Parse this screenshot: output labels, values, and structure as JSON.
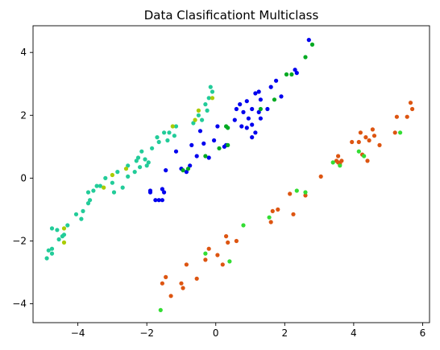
{
  "chart_data": {
    "type": "scatter",
    "title": "Data Clasificationt Multiclass",
    "xlabel": "",
    "ylabel": "",
    "xlim": [
      -5.3,
      6.2
    ],
    "ylim": [
      -4.6,
      4.85
    ],
    "x_ticks": [
      -4,
      -2,
      0,
      2,
      4,
      6
    ],
    "y_ticks": [
      -4,
      -2,
      0,
      2,
      4
    ],
    "grid": false,
    "legend": "none",
    "series": [
      {
        "color": "#0000ee",
        "points": [
          [
            2.7,
            4.4
          ],
          [
            2.3,
            3.45
          ],
          [
            2.35,
            3.35
          ],
          [
            1.75,
            3.1
          ],
          [
            1.6,
            2.9
          ],
          [
            1.9,
            2.6
          ],
          [
            1.25,
            2.75
          ],
          [
            1.15,
            2.7
          ],
          [
            1.3,
            2.5
          ],
          [
            1.5,
            2.2
          ],
          [
            0.6,
            2.2
          ],
          [
            0.7,
            2.35
          ],
          [
            0.9,
            2.45
          ],
          [
            1.05,
            2.2
          ],
          [
            1.25,
            2.1
          ],
          [
            0.8,
            2.1
          ],
          [
            0.55,
            1.85
          ],
          [
            0.75,
            1.65
          ],
          [
            0.95,
            1.9
          ],
          [
            0.9,
            1.6
          ],
          [
            1.05,
            1.7
          ],
          [
            1.15,
            1.45
          ],
          [
            1.3,
            1.9
          ],
          [
            1.05,
            1.3
          ],
          [
            0.05,
            1.65
          ],
          [
            -0.45,
            1.5
          ],
          [
            -0.05,
            1.2
          ],
          [
            -0.35,
            1.1
          ],
          [
            0.25,
            1.0
          ],
          [
            0.3,
            1.05
          ],
          [
            -0.7,
            1.05
          ],
          [
            -1.15,
            0.85
          ],
          [
            -0.55,
            0.7
          ],
          [
            -0.2,
            0.65
          ],
          [
            -0.75,
            0.4
          ],
          [
            -1.0,
            0.3
          ],
          [
            -1.45,
            0.25
          ],
          [
            -0.85,
            0.2
          ],
          [
            -1.9,
            -0.4
          ],
          [
            -1.9,
            -0.45
          ],
          [
            -1.55,
            -0.35
          ],
          [
            -1.5,
            -0.45
          ],
          [
            -1.75,
            -0.7
          ],
          [
            -1.55,
            -0.7
          ],
          [
            -1.65,
            -0.7
          ]
        ]
      },
      {
        "color": "#00aa22",
        "points": [
          [
            2.8,
            4.25
          ],
          [
            2.6,
            3.85
          ],
          [
            2.05,
            3.3
          ],
          [
            2.2,
            3.3
          ],
          [
            1.7,
            2.5
          ],
          [
            0.35,
            1.6
          ],
          [
            0.3,
            1.65
          ],
          [
            0.35,
            1.05
          ],
          [
            -0.95,
            0.25
          ],
          [
            -0.8,
            0.3
          ],
          [
            1.3,
            2.2
          ],
          [
            0.1,
            0.95
          ],
          [
            -0.3,
            0.7
          ]
        ]
      },
      {
        "color": "#22cc99",
        "points": [
          [
            -0.15,
            2.9
          ],
          [
            -0.1,
            2.75
          ],
          [
            -0.2,
            2.55
          ],
          [
            -0.3,
            2.35
          ],
          [
            -0.25,
            2.15
          ],
          [
            -0.5,
            2.0
          ],
          [
            -0.4,
            1.85
          ],
          [
            -0.65,
            1.75
          ],
          [
            -1.15,
            1.65
          ],
          [
            -1.5,
            1.45
          ],
          [
            -1.7,
            1.3
          ],
          [
            -1.65,
            1.15
          ],
          [
            -1.85,
            0.95
          ],
          [
            -2.15,
            0.85
          ],
          [
            -2.25,
            0.65
          ],
          [
            -2.05,
            0.6
          ],
          [
            -2.3,
            0.55
          ],
          [
            -1.95,
            0.5
          ],
          [
            -2.0,
            0.4
          ],
          [
            -2.2,
            0.35
          ],
          [
            -2.55,
            0.4
          ],
          [
            -2.35,
            0.2
          ],
          [
            -2.85,
            0.2
          ],
          [
            -2.55,
            0.05
          ],
          [
            -3.2,
            0.0
          ],
          [
            -3.0,
            -0.15
          ],
          [
            -2.7,
            -0.3
          ],
          [
            -2.95,
            -0.45
          ],
          [
            -3.35,
            -0.25
          ],
          [
            -3.45,
            -0.25
          ],
          [
            -3.55,
            -0.4
          ],
          [
            -3.7,
            -0.45
          ],
          [
            -3.65,
            -0.7
          ],
          [
            -3.7,
            -0.8
          ],
          [
            -3.85,
            -1.05
          ],
          [
            -4.05,
            -1.15
          ],
          [
            -3.9,
            -1.3
          ],
          [
            -4.3,
            -1.5
          ],
          [
            -4.4,
            -1.8
          ],
          [
            -4.45,
            -1.85
          ],
          [
            -4.75,
            -1.6
          ],
          [
            -4.6,
            -1.65
          ],
          [
            -4.75,
            -2.25
          ],
          [
            -4.85,
            -2.3
          ],
          [
            -4.75,
            -2.4
          ],
          [
            -4.9,
            -2.55
          ],
          [
            -4.55,
            -1.95
          ],
          [
            -1.35,
            1.45
          ],
          [
            -1.2,
            1.35
          ],
          [
            -1.4,
            1.2
          ]
        ]
      },
      {
        "color": "#aacc00",
        "points": [
          [
            -0.1,
            2.55
          ],
          [
            -0.5,
            2.15
          ],
          [
            -0.6,
            1.85
          ],
          [
            -1.25,
            1.65
          ],
          [
            -2.6,
            0.3
          ],
          [
            -3.0,
            0.1
          ],
          [
            -3.25,
            -0.3
          ],
          [
            -4.4,
            -1.6
          ],
          [
            -4.4,
            -2.05
          ]
        ]
      },
      {
        "color": "#dd5511",
        "points": [
          [
            5.65,
            2.4
          ],
          [
            5.7,
            2.2
          ],
          [
            5.55,
            1.95
          ],
          [
            5.25,
            1.95
          ],
          [
            5.2,
            1.45
          ],
          [
            4.75,
            1.05
          ],
          [
            4.6,
            1.35
          ],
          [
            4.55,
            1.55
          ],
          [
            4.2,
            1.45
          ],
          [
            4.35,
            1.3
          ],
          [
            4.45,
            1.2
          ],
          [
            4.15,
            1.15
          ],
          [
            3.95,
            1.15
          ],
          [
            4.25,
            0.75
          ],
          [
            4.4,
            0.55
          ],
          [
            3.55,
            0.7
          ],
          [
            3.5,
            0.55
          ],
          [
            3.55,
            0.5
          ],
          [
            3.6,
            0.45
          ],
          [
            3.65,
            0.55
          ],
          [
            3.05,
            0.05
          ],
          [
            2.6,
            -0.55
          ],
          [
            2.15,
            -0.5
          ],
          [
            2.25,
            -1.15
          ],
          [
            1.8,
            -1.0
          ],
          [
            1.65,
            -1.05
          ],
          [
            1.6,
            -1.4
          ],
          [
            0.6,
            -2.0
          ],
          [
            0.3,
            -1.85
          ],
          [
            0.35,
            -2.05
          ],
          [
            0.2,
            -2.75
          ],
          [
            -0.2,
            -2.25
          ],
          [
            -0.3,
            -2.6
          ],
          [
            -0.55,
            -3.2
          ],
          [
            -0.85,
            -2.75
          ],
          [
            -1.0,
            -3.35
          ],
          [
            -0.95,
            -3.5
          ],
          [
            -1.55,
            -3.35
          ],
          [
            -1.45,
            -3.15
          ],
          [
            -1.3,
            -3.75
          ],
          [
            0.05,
            -2.45
          ]
        ]
      },
      {
        "color": "#33dd33",
        "points": [
          [
            5.35,
            1.45
          ],
          [
            4.15,
            0.85
          ],
          [
            4.3,
            0.7
          ],
          [
            3.6,
            0.4
          ],
          [
            3.4,
            0.5
          ],
          [
            2.6,
            -0.45
          ],
          [
            2.35,
            -0.4
          ],
          [
            1.55,
            -1.25
          ],
          [
            0.8,
            -1.5
          ],
          [
            -0.3,
            -2.4
          ],
          [
            0.4,
            -2.65
          ],
          [
            -1.6,
            -4.2
          ]
        ]
      }
    ]
  }
}
